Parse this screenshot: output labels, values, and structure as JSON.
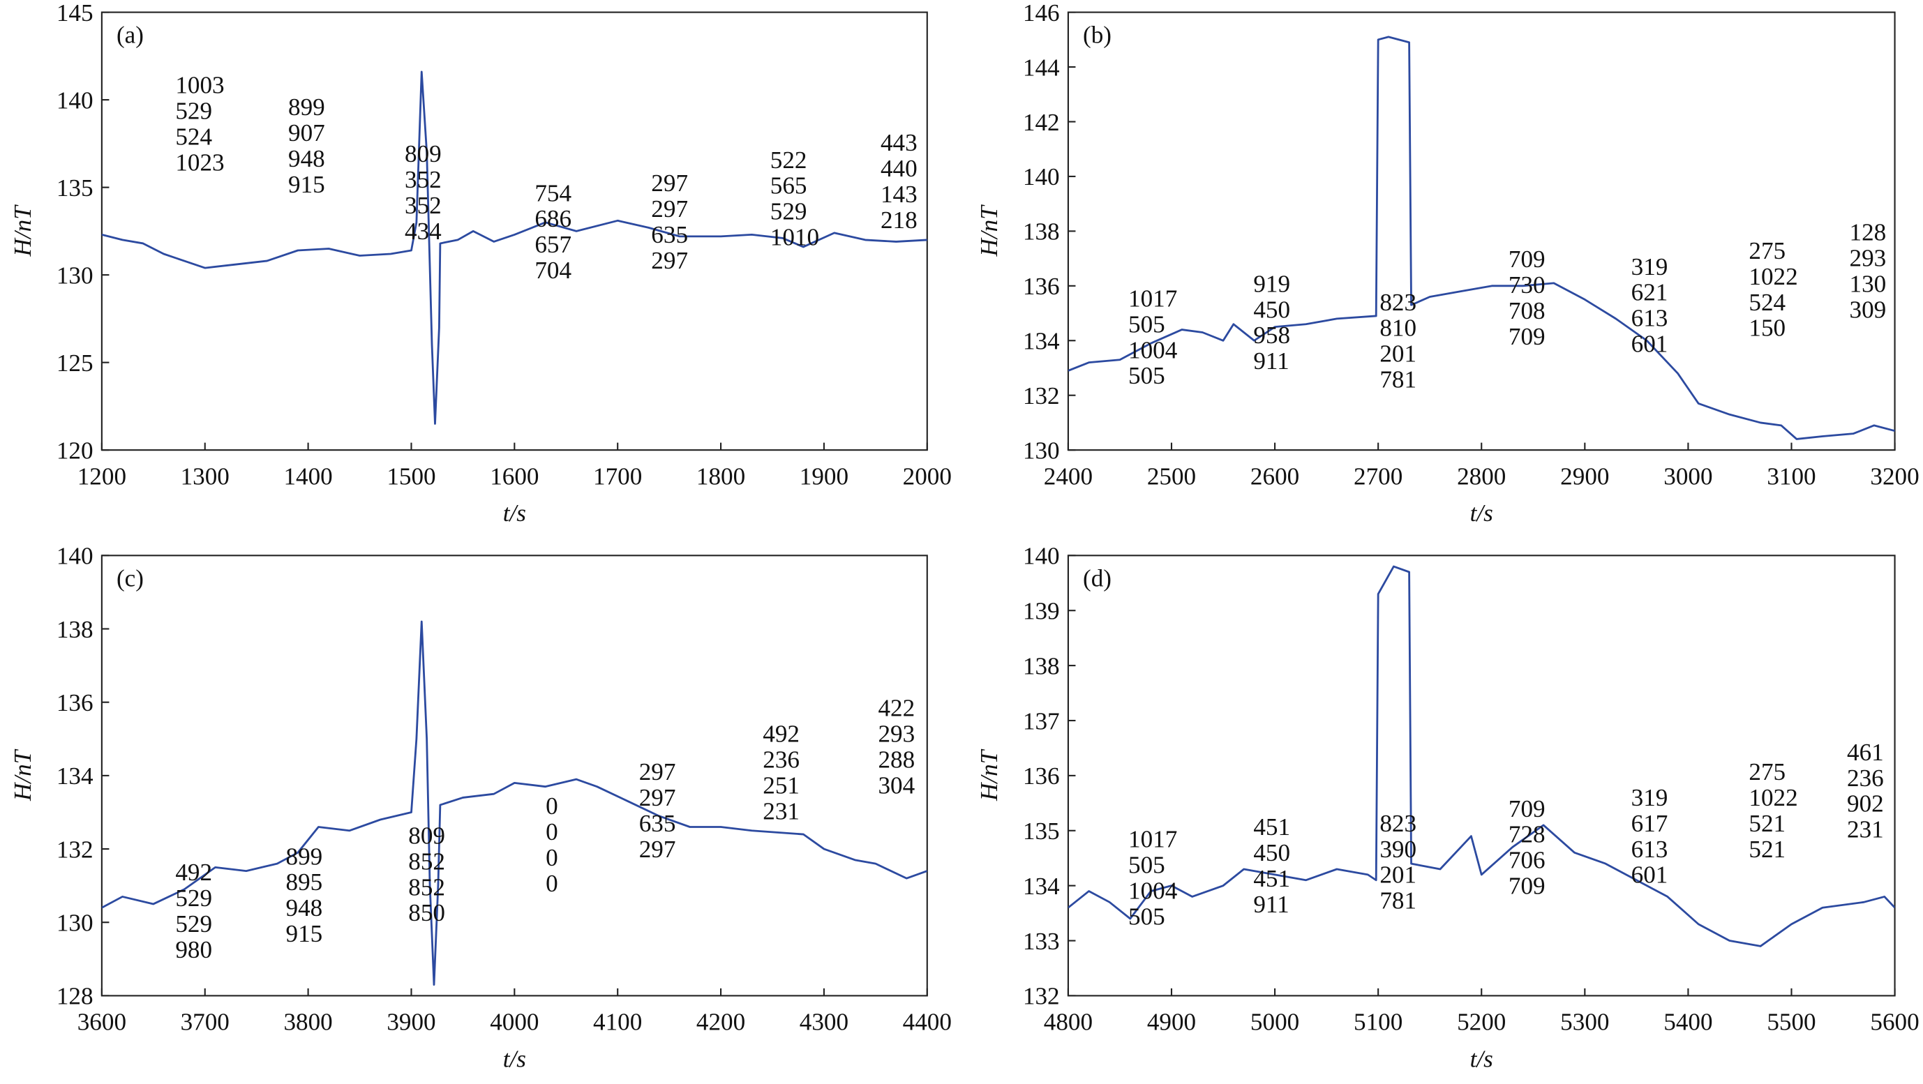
{
  "chart_data": [
    {
      "type": "line",
      "panel_label": "(a)",
      "x_label": "t/s",
      "y_label": "H/nT",
      "xlim": [
        1200,
        2000
      ],
      "xticks": [
        1200,
        1300,
        1400,
        1500,
        1600,
        1700,
        1800,
        1900,
        2000
      ],
      "ylim": [
        120,
        145
      ],
      "yticks": [
        120,
        125,
        130,
        135,
        140,
        145
      ],
      "x": [
        1200,
        1220,
        1240,
        1260,
        1280,
        1300,
        1330,
        1360,
        1390,
        1420,
        1450,
        1480,
        1500,
        1505,
        1510,
        1515,
        1520,
        1523,
        1527,
        1528,
        1545,
        1560,
        1580,
        1600,
        1630,
        1660,
        1700,
        1730,
        1760,
        1800,
        1830,
        1860,
        1880,
        1910,
        1940,
        1970,
        2000
      ],
      "values": [
        132.3,
        132.0,
        131.8,
        131.2,
        130.8,
        130.4,
        130.6,
        130.8,
        131.4,
        131.5,
        131.1,
        131.2,
        131.4,
        133,
        141.6,
        137,
        126,
        121.5,
        127,
        131.8,
        132.0,
        132.5,
        131.9,
        132.3,
        133.0,
        132.5,
        133.1,
        132.7,
        132.2,
        132.2,
        132.3,
        132.1,
        131.6,
        132.4,
        132.0,
        131.9,
        132.0
      ],
      "color": "#2c4aa0",
      "annotations": [
        [
          "1003",
          "529",
          "524",
          "1023"
        ],
        [
          "899",
          "907",
          "948",
          "915"
        ],
        [
          "809",
          "352",
          "352",
          "434"
        ],
        [
          "754",
          "686",
          "657",
          "704"
        ],
        [
          "297",
          "297",
          "635",
          "297"
        ],
        [
          "522",
          "565",
          "529",
          "1010"
        ],
        [
          "443",
          "440",
          "143",
          "218"
        ]
      ]
    },
    {
      "type": "line",
      "panel_label": "(b)",
      "x_label": "t/s",
      "y_label": "H/nT",
      "xlim": [
        2400,
        3200
      ],
      "xticks": [
        2400,
        2500,
        2600,
        2700,
        2800,
        2900,
        3000,
        3100,
        3200
      ],
      "ylim": [
        130,
        146
      ],
      "yticks": [
        130,
        132,
        134,
        136,
        138,
        140,
        142,
        144,
        146
      ],
      "x": [
        2400,
        2420,
        2450,
        2480,
        2510,
        2530,
        2550,
        2560,
        2580,
        2600,
        2630,
        2660,
        2698,
        2700,
        2710,
        2730,
        2732,
        2750,
        2780,
        2810,
        2840,
        2870,
        2900,
        2930,
        2960,
        2990,
        3010,
        3040,
        3070,
        3090,
        3105,
        3130,
        3160,
        3180,
        3200
      ],
      "values": [
        132.9,
        133.2,
        133.3,
        133.9,
        134.4,
        134.3,
        134.0,
        134.6,
        134.0,
        134.5,
        134.6,
        134.8,
        134.9,
        145.0,
        145.1,
        144.9,
        135.3,
        135.6,
        135.8,
        136.0,
        136.0,
        136.1,
        135.5,
        134.8,
        134.0,
        132.8,
        131.7,
        131.3,
        131.0,
        130.9,
        130.4,
        130.5,
        130.6,
        130.9,
        130.7
      ],
      "color": "#2c4aa0",
      "annotations": [
        [
          "1017",
          "505",
          "1004",
          "505"
        ],
        [
          "919",
          "450",
          "958",
          "911"
        ],
        [
          "823",
          "810",
          "201",
          "781"
        ],
        [
          "709",
          "730",
          "708",
          "709"
        ],
        [
          "319",
          "621",
          "613",
          "601"
        ],
        [
          "275",
          "1022",
          "524",
          "150"
        ],
        [
          "128",
          "293",
          "130",
          "309"
        ]
      ]
    },
    {
      "type": "line",
      "panel_label": "(c)",
      "x_label": "t/s",
      "y_label": "H/nT",
      "xlim": [
        3600,
        4400
      ],
      "xticks": [
        3600,
        3700,
        3800,
        3900,
        4000,
        4100,
        4200,
        4300,
        4400
      ],
      "ylim": [
        128,
        140
      ],
      "yticks": [
        128,
        130,
        132,
        134,
        136,
        138,
        140
      ],
      "x": [
        3600,
        3620,
        3650,
        3680,
        3710,
        3740,
        3770,
        3790,
        3810,
        3840,
        3870,
        3900,
        3905,
        3910,
        3915,
        3918,
        3922,
        3926,
        3928,
        3950,
        3980,
        4000,
        4030,
        4060,
        4080,
        4110,
        4140,
        4170,
        4200,
        4230,
        4280,
        4300,
        4330,
        4350,
        4380,
        4400
      ],
      "values": [
        130.4,
        130.7,
        130.5,
        130.9,
        131.5,
        131.4,
        131.6,
        131.9,
        132.6,
        132.5,
        132.8,
        133.0,
        135,
        138.2,
        135,
        131,
        128.3,
        131,
        133.2,
        133.4,
        133.5,
        133.8,
        133.7,
        133.9,
        133.7,
        133.3,
        132.9,
        132.6,
        132.6,
        132.5,
        132.4,
        132.0,
        131.7,
        131.6,
        131.2,
        131.4
      ],
      "color": "#2c4aa0",
      "annotations": [
        [
          "492",
          "529",
          "529",
          "980"
        ],
        [
          "899",
          "895",
          "948",
          "915"
        ],
        [
          "809",
          "852",
          "852",
          "850"
        ],
        [
          "0",
          "0",
          "0",
          "0"
        ],
        [
          "297",
          "297",
          "635",
          "297"
        ],
        [
          "492",
          "236",
          "251",
          "231"
        ],
        [
          "422",
          "293",
          "288",
          "304"
        ]
      ]
    },
    {
      "type": "line",
      "panel_label": "(d)",
      "x_label": "t/s",
      "y_label": "H/nT",
      "xlim": [
        4800,
        5600
      ],
      "xticks": [
        4800,
        4900,
        5000,
        5100,
        5200,
        5300,
        5400,
        5500,
        5600
      ],
      "ylim": [
        132,
        140
      ],
      "yticks": [
        132,
        133,
        134,
        135,
        136,
        137,
        138,
        139,
        140
      ],
      "x": [
        4800,
        4820,
        4840,
        4860,
        4880,
        4900,
        4920,
        4950,
        4970,
        5000,
        5030,
        5060,
        5090,
        5098,
        5100,
        5115,
        5130,
        5132,
        5160,
        5190,
        5200,
        5230,
        5260,
        5290,
        5320,
        5350,
        5380,
        5410,
        5440,
        5470,
        5500,
        5530,
        5570,
        5590,
        5600
      ],
      "values": [
        133.6,
        133.9,
        133.7,
        133.4,
        133.9,
        134.0,
        133.8,
        134.0,
        134.3,
        134.2,
        134.1,
        134.3,
        134.2,
        134.1,
        139.3,
        139.8,
        139.7,
        134.4,
        134.3,
        134.9,
        134.2,
        134.7,
        135.1,
        134.6,
        134.4,
        134.1,
        133.8,
        133.3,
        133.0,
        132.9,
        133.3,
        133.6,
        133.7,
        133.8,
        133.6
      ],
      "color": "#2c4aa0",
      "annotations": [
        [
          "1017",
          "505",
          "1004",
          "505"
        ],
        [
          "451",
          "450",
          "451",
          "911"
        ],
        [
          "823",
          "390",
          "201",
          "781"
        ],
        [
          "709",
          "728",
          "706",
          "709"
        ],
        [
          "319",
          "617",
          "613",
          "601"
        ],
        [
          "275",
          "1022",
          "521",
          "521"
        ],
        [
          "461",
          "236",
          "902",
          "231"
        ]
      ]
    }
  ]
}
